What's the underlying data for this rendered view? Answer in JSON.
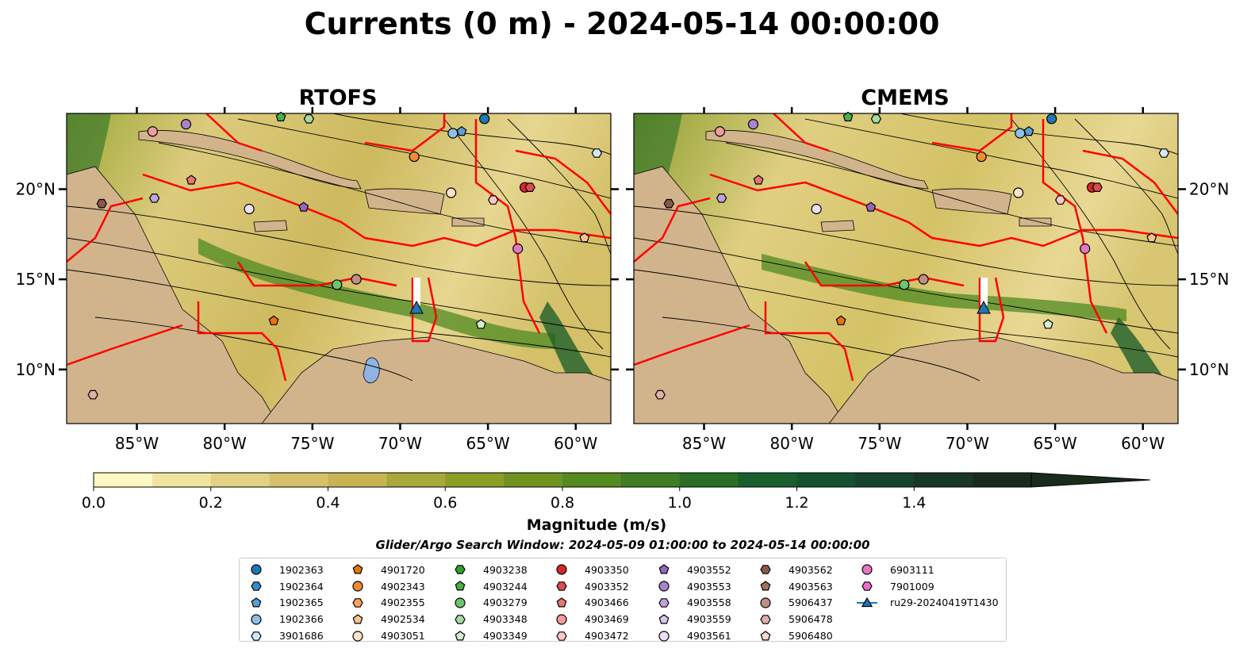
{
  "figure": {
    "title": "Currents (0 m) - 2024-05-14 00:00:00",
    "search_window": "Glider/Argo Search Window: 2024-05-09 01:00:00 to 2024-05-14 00:00:00"
  },
  "chart_data": {
    "type": "heatmap",
    "panels": [
      {
        "title": "RTOFS",
        "y_ticks_side": "left"
      },
      {
        "title": "CMEMS",
        "y_ticks_side": "right"
      }
    ],
    "xlim": [
      -89.0,
      -58.0
    ],
    "ylim": [
      7.0,
      24.2
    ],
    "x_ticks": [
      {
        "value": -85,
        "label": "85°W"
      },
      {
        "value": -80,
        "label": "80°W"
      },
      {
        "value": -75,
        "label": "75°W"
      },
      {
        "value": -70,
        "label": "70°W"
      },
      {
        "value": -65,
        "label": "65°W"
      },
      {
        "value": -60,
        "label": "60°W"
      }
    ],
    "y_ticks": [
      {
        "value": 10,
        "label": "10°N"
      },
      {
        "value": 15,
        "label": "15°N"
      },
      {
        "value": 20,
        "label": "20°N"
      }
    ],
    "colorbar": {
      "label": "Magnitude (m/s)",
      "min": 0.0,
      "max": 1.6,
      "extend": "max",
      "ticks": [
        {
          "value": 0.0,
          "label": "0.0"
        },
        {
          "value": 0.2,
          "label": "0.2"
        },
        {
          "value": 0.4,
          "label": "0.4"
        },
        {
          "value": 0.6,
          "label": "0.6"
        },
        {
          "value": 0.8,
          "label": "0.8"
        },
        {
          "value": 1.0,
          "label": "1.0"
        },
        {
          "value": 1.2,
          "label": "1.2"
        },
        {
          "value": 1.4,
          "label": "1.4"
        }
      ],
      "colors": [
        "#fdf7c3",
        "#f0e4a0",
        "#e3d184",
        "#d6c06a",
        "#c7b454",
        "#a9a83a",
        "#8c9e26",
        "#6f9320",
        "#548a1f",
        "#3e7d22",
        "#2a6e26",
        "#185f2d",
        "#155131",
        "#16432c",
        "#183625",
        "#1a2b1c"
      ]
    },
    "legend_placement": "bottom-center",
    "legend": [
      {
        "name": "1902363",
        "marker": "circle",
        "color": "#1f77b4"
      },
      {
        "name": "1902364",
        "marker": "hexagon",
        "color": "#3a8bc4"
      },
      {
        "name": "1902365",
        "marker": "pentagon",
        "color": "#5a9fd4"
      },
      {
        "name": "1902366",
        "marker": "circle",
        "color": "#8ec0e6"
      },
      {
        "name": "3901686",
        "marker": "hexagon",
        "color": "#d4e8f7"
      },
      {
        "name": "4901720",
        "marker": "pentagon",
        "color": "#e8740c"
      },
      {
        "name": "4902343",
        "marker": "circle",
        "color": "#f08a33"
      },
      {
        "name": "4902355",
        "marker": "hexagon",
        "color": "#f5a35c"
      },
      {
        "name": "4902534",
        "marker": "pentagon",
        "color": "#f8c490"
      },
      {
        "name": "4903051",
        "marker": "circle",
        "color": "#fde2c8"
      },
      {
        "name": "4903238",
        "marker": "hexagon",
        "color": "#2ca02c"
      },
      {
        "name": "4903244",
        "marker": "pentagon",
        "color": "#48b048"
      },
      {
        "name": "4903279",
        "marker": "circle",
        "color": "#6cc46c"
      },
      {
        "name": "4903348",
        "marker": "hexagon",
        "color": "#a4dca0"
      },
      {
        "name": "4903349",
        "marker": "pentagon",
        "color": "#d4f0cf"
      },
      {
        "name": "4903350",
        "marker": "circle",
        "color": "#d62728"
      },
      {
        "name": "4903352",
        "marker": "hexagon",
        "color": "#de4d4d"
      },
      {
        "name": "4903466",
        "marker": "pentagon",
        "color": "#e87474"
      },
      {
        "name": "4903469",
        "marker": "circle",
        "color": "#f09c9c"
      },
      {
        "name": "4903472",
        "marker": "hexagon",
        "color": "#fac8c8"
      },
      {
        "name": "4903552",
        "marker": "pentagon",
        "color": "#9467bd"
      },
      {
        "name": "4903553",
        "marker": "circle",
        "color": "#a884cc"
      },
      {
        "name": "4903558",
        "marker": "hexagon",
        "color": "#bea4da"
      },
      {
        "name": "4903559",
        "marker": "pentagon",
        "color": "#d6c6ea"
      },
      {
        "name": "4903561",
        "marker": "circle",
        "color": "#ecdff6"
      },
      {
        "name": "4903562",
        "marker": "hexagon",
        "color": "#8c564b"
      },
      {
        "name": "4903563",
        "marker": "pentagon",
        "color": "#a57062"
      },
      {
        "name": "5906437",
        "marker": "circle",
        "color": "#c08e83"
      },
      {
        "name": "5906478",
        "marker": "hexagon",
        "color": "#e4aea8"
      },
      {
        "name": "5906480",
        "marker": "pentagon",
        "color": "#fad8cf"
      },
      {
        "name": "6903111",
        "marker": "circle",
        "color": "#e377c2"
      },
      {
        "name": "7901009",
        "marker": "hexagon",
        "color": "#e870c6"
      },
      {
        "name": "ru29-20240419T1430",
        "marker": "triangle-line",
        "color": "#1f77b4"
      }
    ],
    "glider_track": {
      "name": "ru29-20240419T1430",
      "lon": -69.1,
      "lat": 13.5
    },
    "float_positions": [
      {
        "id": "1902363",
        "lon": -65.2,
        "lat": 23.9
      },
      {
        "id": "1902366",
        "lon": -67.0,
        "lat": 23.1
      },
      {
        "id": "1902365",
        "lon": -66.5,
        "lat": 23.2
      },
      {
        "id": "3901686",
        "lon": -58.8,
        "lat": 22.0
      },
      {
        "id": "4902343",
        "lon": -69.2,
        "lat": 21.8
      },
      {
        "id": "4903051",
        "lon": -67.1,
        "lat": 19.8
      },
      {
        "id": "4903472",
        "lon": -64.7,
        "lat": 19.4
      },
      {
        "id": "4903350",
        "lon": -62.9,
        "lat": 20.1
      },
      {
        "id": "4903352",
        "lon": -62.6,
        "lat": 20.1
      },
      {
        "id": "4903244",
        "lon": -76.8,
        "lat": 24.0
      },
      {
        "id": "4903348",
        "lon": -75.2,
        "lat": 23.9
      },
      {
        "id": "4903553",
        "lon": -82.2,
        "lat": 23.6
      },
      {
        "id": "4903552",
        "lon": -75.5,
        "lat": 19.0
      },
      {
        "id": "4903561",
        "lon": -78.6,
        "lat": 18.9
      },
      {
        "id": "4903466",
        "lon": -81.9,
        "lat": 20.5
      },
      {
        "id": "4903562",
        "lon": -87.0,
        "lat": 19.2
      },
      {
        "id": "4903558",
        "lon": -84.0,
        "lat": 19.5
      },
      {
        "id": "6903111",
        "lon": -63.3,
        "lat": 16.7
      },
      {
        "id": "4902534",
        "lon": -59.5,
        "lat": 17.3
      },
      {
        "id": "4903349",
        "lon": -65.4,
        "lat": 12.5
      },
      {
        "id": "4901720",
        "lon": -77.2,
        "lat": 12.7
      },
      {
        "id": "4903279",
        "lon": -73.6,
        "lat": 14.7
      },
      {
        "id": "5906437",
        "lon": -72.5,
        "lat": 15.0
      },
      {
        "id": "5906478",
        "lon": -87.5,
        "lat": 8.6
      },
      {
        "id": "4903469",
        "lon": -84.1,
        "lat": 23.2
      }
    ]
  }
}
